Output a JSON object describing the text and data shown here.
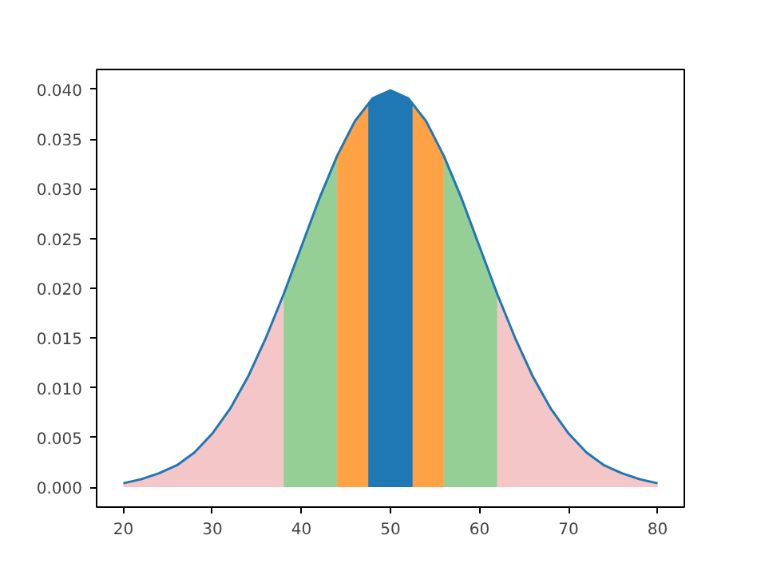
{
  "chart_data": {
    "type": "area",
    "xlim": [
      17,
      83
    ],
    "ylim": [
      -0.002,
      0.042
    ],
    "xticks": [
      20,
      30,
      40,
      50,
      60,
      70,
      80
    ],
    "yticks": [
      {
        "value": 0,
        "label": "0.000"
      },
      {
        "value": 0.005,
        "label": "0.005"
      },
      {
        "value": 0.01,
        "label": "0.010"
      },
      {
        "value": 0.015,
        "label": "0.015"
      },
      {
        "value": 0.02,
        "label": "0.020"
      },
      {
        "value": 0.025,
        "label": "0.025"
      },
      {
        "value": 0.03,
        "label": "0.030"
      },
      {
        "value": 0.035,
        "label": "0.035"
      },
      {
        "value": 0.04,
        "label": "0.040"
      }
    ],
    "grid": false,
    "series": [
      {
        "color": "#f5c6c8",
        "x": [
          20,
          22,
          24,
          26,
          28,
          30,
          32,
          34,
          36,
          38
        ],
        "values": [
          0.0004,
          0.0008,
          0.0014,
          0.0022,
          0.0035,
          0.0054,
          0.0079,
          0.0111,
          0.015,
          0.0194
        ]
      },
      {
        "color": "#95cf95",
        "x": [
          38,
          40,
          42,
          44
        ],
        "values": [
          0.0194,
          0.0242,
          0.029,
          0.0333
        ]
      },
      {
        "color": "#ffa245",
        "x": [
          44,
          46,
          47.5
        ],
        "values": [
          0.0333,
          0.0368,
          0.0387
        ]
      },
      {
        "color": "#1f77b4",
        "x": [
          47.5,
          48,
          50,
          52,
          52.5
        ],
        "values": [
          0.0387,
          0.0391,
          0.0399,
          0.0391,
          0.0387
        ]
      },
      {
        "color": "#ffa245",
        "x": [
          52.5,
          54,
          56
        ],
        "values": [
          0.0387,
          0.0368,
          0.0333
        ]
      },
      {
        "color": "#95cf95",
        "x": [
          56,
          58,
          60,
          62
        ],
        "values": [
          0.0333,
          0.029,
          0.0242,
          0.0194
        ]
      },
      {
        "color": "#f5c6c8",
        "x": [
          62,
          64,
          66,
          68,
          70,
          72,
          74,
          76,
          78,
          80
        ],
        "values": [
          0.0194,
          0.015,
          0.0111,
          0.0079,
          0.0054,
          0.0035,
          0.0022,
          0.0014,
          0.0008,
          0.0004
        ]
      },
      {
        "type": "line",
        "color": "#1f77b4",
        "x": [
          20,
          22,
          24,
          26,
          28,
          30,
          32,
          34,
          36,
          38,
          40,
          42,
          44,
          46,
          48,
          50,
          52,
          54,
          56,
          58,
          60,
          62,
          64,
          66,
          68,
          70,
          72,
          74,
          76,
          78,
          80
        ],
        "values": [
          0.0004,
          0.0008,
          0.0014,
          0.0022,
          0.0035,
          0.0054,
          0.0079,
          0.0111,
          0.015,
          0.0194,
          0.0242,
          0.029,
          0.0333,
          0.0368,
          0.0391,
          0.0399,
          0.0391,
          0.0368,
          0.0333,
          0.029,
          0.0242,
          0.0194,
          0.015,
          0.0111,
          0.0079,
          0.0054,
          0.0035,
          0.0022,
          0.0014,
          0.0008,
          0.0004
        ]
      }
    ]
  }
}
